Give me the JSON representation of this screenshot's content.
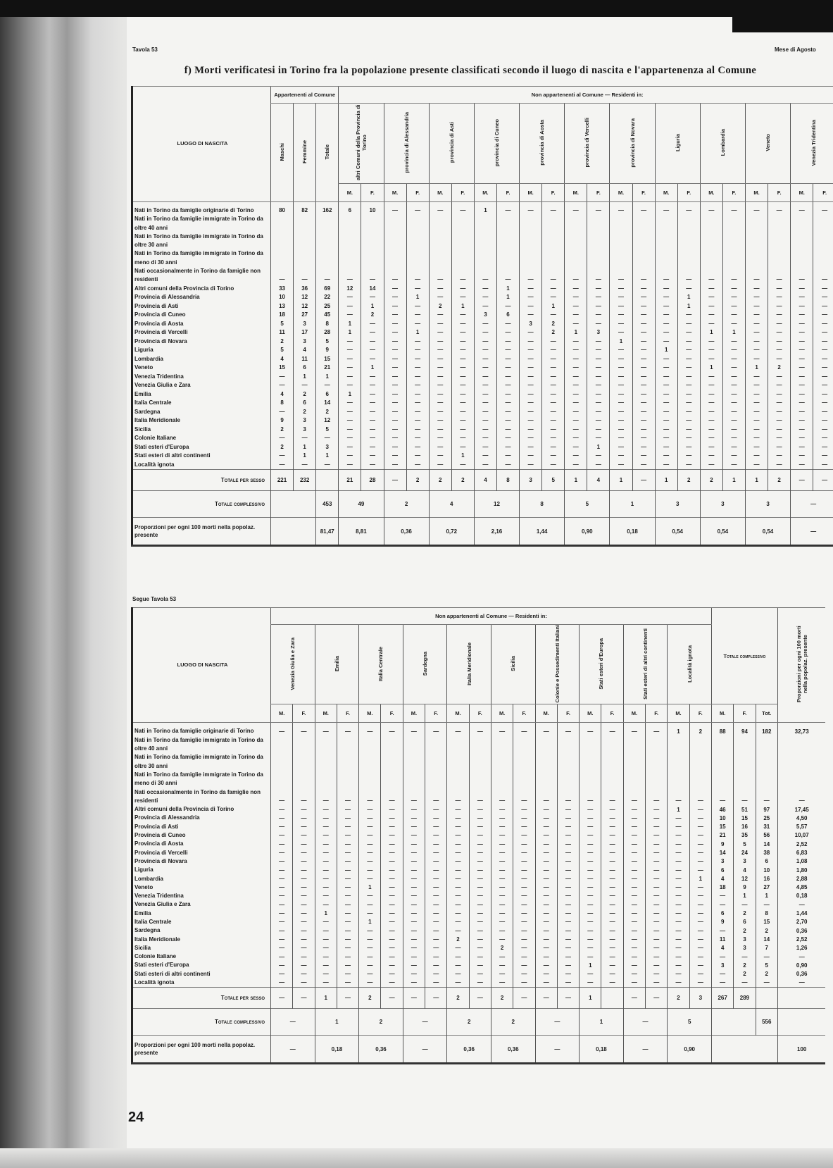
{
  "header": {
    "left": "Tavola 53",
    "right": "Mese di Agosto",
    "title": "f) Morti verificatesi in Torino fra la popolazione presente classificati secondo il luogo di nascita e l'appartenenza al Comune",
    "continued": "Segue Tavola 53",
    "page_number": "24"
  },
  "row_labels": [
    "Nati in Torino da famiglie originarie di Torino",
    [
      "Nati in Torino da famiglie immigrate in Torino da oltre 40 anni",
      "Nati in Torino da famiglie immigrate in Torino da oltre 30 anni",
      "Nati in Torino da famiglie immigrate in Torino da meno di 30 anni",
      "Nati occasionalmente in Torino da famiglie non residenti"
    ],
    "Altri comuni della Provincia di Torino",
    "Provincia di Alessandria",
    "Provincia di Asti",
    "Provincia di Cuneo",
    "Provincia di Aosta",
    "Provincia di Vercelli",
    "Provincia di Novara",
    "Liguria",
    "Lombardia",
    "Veneto",
    "Venezia Tridentina",
    "Venezia Giulia e Zara",
    "Emilia",
    "Italia Centrale",
    "Sardegna",
    "Italia Meridionale",
    "Sicilia",
    "Colonie Italiane",
    "Stati esteri d'Europa",
    "Stati esteri di altri continenti",
    "Località ignota"
  ],
  "labels": {
    "luogo": "LUOGO DI NASCITA",
    "totale_sesso": "Totale per sesso",
    "totale_compl": "Totale complessivo",
    "proporzioni": "Proporzioni per ogni 100 morti nella popolaz. presente",
    "m": "M.",
    "f": "F.",
    "tot": "Tot."
  },
  "table1": {
    "group_app": "Appartenenti al Comune",
    "group_non": "Non appartenenti al Comune — Residenti in:",
    "app_cols": [
      "Maschi",
      "Femmine",
      "Totale"
    ],
    "res_cols": [
      "altri Comuni della Provincia di Torino",
      "provincia di Alessandria",
      "provincia di Asti",
      "provincia di Cuneo",
      "provincia di Aosta",
      "provincia di Vercelli",
      "provincia di Novara",
      "Liguria",
      "Lombardia",
      "Veneto",
      "Venezia Tridentina"
    ],
    "rows": [
      [
        "80",
        "82",
        "162",
        "6",
        "10",
        "—",
        "—",
        "—",
        "—",
        "1",
        "—",
        "—",
        "—",
        "—",
        "—",
        "—",
        "—",
        "—",
        "—",
        "—",
        "—",
        "—",
        "—",
        "—",
        "—"
      ],
      [
        "—",
        "—",
        "—",
        "—",
        "—",
        "—",
        "—",
        "—",
        "—",
        "—",
        "—",
        "—",
        "—",
        "—",
        "—",
        "—",
        "—",
        "—",
        "—",
        "—",
        "—",
        "—",
        "—",
        "—",
        "—"
      ],
      [
        "33",
        "36",
        "69",
        "12",
        "14",
        "—",
        "—",
        "—",
        "—",
        "—",
        "1",
        "—",
        "—",
        "—",
        "—",
        "—",
        "—",
        "—",
        "—",
        "—",
        "—",
        "—",
        "—",
        "—",
        "—"
      ],
      [
        "10",
        "12",
        "22",
        "—",
        "—",
        "—",
        "1",
        "—",
        "—",
        "—",
        "1",
        "—",
        "—",
        "—",
        "—",
        "—",
        "—",
        "—",
        "1",
        "—",
        "—",
        "—",
        "—",
        "—",
        "—"
      ],
      [
        "13",
        "12",
        "25",
        "—",
        "1",
        "—",
        "—",
        "2",
        "1",
        "—",
        "—",
        "—",
        "1",
        "—",
        "—",
        "—",
        "—",
        "—",
        "1",
        "—",
        "—",
        "—",
        "—",
        "—",
        "—"
      ],
      [
        "18",
        "27",
        "45",
        "—",
        "2",
        "—",
        "—",
        "—",
        "—",
        "3",
        "6",
        "—",
        "—",
        "—",
        "—",
        "—",
        "—",
        "—",
        "—",
        "—",
        "—",
        "—",
        "—",
        "—",
        "—"
      ],
      [
        "5",
        "3",
        "8",
        "1",
        "—",
        "—",
        "—",
        "—",
        "—",
        "—",
        "—",
        "3",
        "2",
        "—",
        "—",
        "—",
        "—",
        "—",
        "—",
        "—",
        "—",
        "—",
        "—",
        "—",
        "—"
      ],
      [
        "11",
        "17",
        "28",
        "1",
        "—",
        "—",
        "1",
        "—",
        "—",
        "—",
        "—",
        "—",
        "2",
        "1",
        "3",
        "—",
        "—",
        "—",
        "—",
        "1",
        "1",
        "—",
        "—",
        "—",
        "—"
      ],
      [
        "2",
        "3",
        "5",
        "—",
        "—",
        "—",
        "—",
        "—",
        "—",
        "—",
        "—",
        "—",
        "—",
        "—",
        "—",
        "1",
        "—",
        "—",
        "—",
        "—",
        "—",
        "—",
        "—",
        "—",
        "—"
      ],
      [
        "5",
        "4",
        "9",
        "—",
        "—",
        "—",
        "—",
        "—",
        "—",
        "—",
        "—",
        "—",
        "—",
        "—",
        "—",
        "—",
        "—",
        "1",
        "—",
        "—",
        "—",
        "—",
        "—",
        "—",
        "—"
      ],
      [
        "4",
        "11",
        "15",
        "—",
        "—",
        "—",
        "—",
        "—",
        "—",
        "—",
        "—",
        "—",
        "—",
        "—",
        "—",
        "—",
        "—",
        "—",
        "—",
        "—",
        "—",
        "—",
        "—",
        "—",
        "—"
      ],
      [
        "15",
        "6",
        "21",
        "—",
        "1",
        "—",
        "—",
        "—",
        "—",
        "—",
        "—",
        "—",
        "—",
        "—",
        "—",
        "—",
        "—",
        "—",
        "—",
        "1",
        "—",
        "1",
        "2",
        "—",
        "—"
      ],
      [
        "—",
        "1",
        "1",
        "—",
        "—",
        "—",
        "—",
        "—",
        "—",
        "—",
        "—",
        "—",
        "—",
        "—",
        "—",
        "—",
        "—",
        "—",
        "—",
        "—",
        "—",
        "—",
        "—",
        "—",
        "—"
      ],
      [
        "—",
        "—",
        "—",
        "—",
        "—",
        "—",
        "—",
        "—",
        "—",
        "—",
        "—",
        "—",
        "—",
        "—",
        "—",
        "—",
        "—",
        "—",
        "—",
        "—",
        "—",
        "—",
        "—",
        "—",
        "—"
      ],
      [
        "4",
        "2",
        "6",
        "1",
        "—",
        "—",
        "—",
        "—",
        "—",
        "—",
        "—",
        "—",
        "—",
        "—",
        "—",
        "—",
        "—",
        "—",
        "—",
        "—",
        "—",
        "—",
        "—",
        "—",
        "—"
      ],
      [
        "8",
        "6",
        "14",
        "—",
        "—",
        "—",
        "—",
        "—",
        "—",
        "—",
        "—",
        "—",
        "—",
        "—",
        "—",
        "—",
        "—",
        "—",
        "—",
        "—",
        "—",
        "—",
        "—",
        "—",
        "—"
      ],
      [
        "—",
        "2",
        "2",
        "—",
        "—",
        "—",
        "—",
        "—",
        "—",
        "—",
        "—",
        "—",
        "—",
        "—",
        "—",
        "—",
        "—",
        "—",
        "—",
        "—",
        "—",
        "—",
        "—",
        "—",
        "—"
      ],
      [
        "9",
        "3",
        "12",
        "—",
        "—",
        "—",
        "—",
        "—",
        "—",
        "—",
        "—",
        "—",
        "—",
        "—",
        "—",
        "—",
        "—",
        "—",
        "—",
        "—",
        "—",
        "—",
        "—",
        "—",
        "—"
      ],
      [
        "2",
        "3",
        "5",
        "—",
        "—",
        "—",
        "—",
        "—",
        "—",
        "—",
        "—",
        "—",
        "—",
        "—",
        "—",
        "—",
        "—",
        "—",
        "—",
        "—",
        "—",
        "—",
        "—",
        "—",
        "—"
      ],
      [
        "—",
        "—",
        "—",
        "—",
        "—",
        "—",
        "—",
        "—",
        "—",
        "—",
        "—",
        "—",
        "—",
        "—",
        "—",
        "—",
        "—",
        "—",
        "—",
        "—",
        "—",
        "—",
        "—",
        "—",
        "—"
      ],
      [
        "2",
        "1",
        "3",
        "—",
        "—",
        "—",
        "—",
        "—",
        "—",
        "—",
        "—",
        "—",
        "—",
        "—",
        "1",
        "—",
        "—",
        "—",
        "—",
        "—",
        "—",
        "—",
        "—",
        "—",
        "—"
      ],
      [
        "—",
        "1",
        "1",
        "—",
        "—",
        "—",
        "—",
        "—",
        "1",
        "—",
        "—",
        "—",
        "—",
        "—",
        "—",
        "—",
        "—",
        "—",
        "—",
        "—",
        "—",
        "—",
        "—",
        "—",
        "—"
      ],
      [
        "—",
        "—",
        "—",
        "—",
        "—",
        "—",
        "—",
        "—",
        "—",
        "—",
        "—",
        "—",
        "—",
        "—",
        "—",
        "—",
        "—",
        "—",
        "—",
        "—",
        "—",
        "—",
        "—",
        "—",
        "—"
      ]
    ],
    "totale_sesso": [
      "221",
      "232",
      "",
      "21",
      "28",
      "—",
      "2",
      "2",
      "2",
      "4",
      "8",
      "3",
      "5",
      "1",
      "4",
      "1",
      "—",
      "1",
      "2",
      "2",
      "1",
      "1",
      "2",
      "—",
      "—"
    ],
    "totale_compl": {
      "totale": "453",
      "groups": [
        "49",
        "2",
        "4",
        "12",
        "8",
        "5",
        "1",
        "3",
        "3",
        "3",
        "—"
      ]
    },
    "proporzioni": {
      "totale": "81,47",
      "groups": [
        "8,81",
        "0,36",
        "0,72",
        "2,16",
        "1,44",
        "0,90",
        "0,18",
        "0,54",
        "0,54",
        "0,54",
        "—"
      ]
    }
  },
  "table2": {
    "group_non": "Non appartenenti al Comune — Residenti in:",
    "res_cols": [
      "Venezia Giulia e Zara",
      "Emilia",
      "Italia Centrale",
      "Sardegna",
      "Italia Meridionale",
      "Sicilia",
      "Colonie e Possedimenti Italiani",
      "Stati esteri d'Europa",
      "Stati esteri di altri continenti",
      "Località ignota"
    ],
    "totale_head": "Totale complessivo",
    "prop_head": "Proporzioni per ogni 100 morti nella popolaz. presente",
    "rows": [
      [
        "—",
        "—",
        "—",
        "—",
        "—",
        "—",
        "—",
        "—",
        "—",
        "—",
        "—",
        "—",
        "—",
        "—",
        "—",
        "—",
        "—",
        "—",
        "1",
        "2",
        "88",
        "94",
        "182",
        "32,73"
      ],
      [
        "—",
        "—",
        "—",
        "—",
        "—",
        "—",
        "—",
        "—",
        "—",
        "—",
        "—",
        "—",
        "—",
        "—",
        "—",
        "—",
        "—",
        "—",
        "—",
        "—",
        "—",
        "—",
        "—",
        "—"
      ],
      [
        "—",
        "—",
        "—",
        "—",
        "—",
        "—",
        "—",
        "—",
        "—",
        "—",
        "—",
        "—",
        "—",
        "—",
        "—",
        "—",
        "—",
        "—",
        "1",
        "—",
        "46",
        "51",
        "97",
        "17,45"
      ],
      [
        "—",
        "—",
        "—",
        "—",
        "—",
        "—",
        "—",
        "—",
        "—",
        "—",
        "—",
        "—",
        "—",
        "—",
        "—",
        "—",
        "—",
        "—",
        "—",
        "—",
        "10",
        "15",
        "25",
        "4,50"
      ],
      [
        "—",
        "—",
        "—",
        "—",
        "—",
        "—",
        "—",
        "—",
        "—",
        "—",
        "—",
        "—",
        "—",
        "—",
        "—",
        "—",
        "—",
        "—",
        "—",
        "—",
        "15",
        "16",
        "31",
        "5,57"
      ],
      [
        "—",
        "—",
        "—",
        "—",
        "—",
        "—",
        "—",
        "—",
        "—",
        "—",
        "—",
        "—",
        "—",
        "—",
        "—",
        "—",
        "—",
        "—",
        "—",
        "—",
        "21",
        "35",
        "56",
        "10,07"
      ],
      [
        "—",
        "—",
        "—",
        "—",
        "—",
        "—",
        "—",
        "—",
        "—",
        "—",
        "—",
        "—",
        "—",
        "—",
        "—",
        "—",
        "—",
        "—",
        "—",
        "—",
        "9",
        "5",
        "14",
        "2,52"
      ],
      [
        "—",
        "—",
        "—",
        "—",
        "—",
        "—",
        "—",
        "—",
        "—",
        "—",
        "—",
        "—",
        "—",
        "—",
        "—",
        "—",
        "—",
        "—",
        "—",
        "—",
        "14",
        "24",
        "38",
        "6,83"
      ],
      [
        "—",
        "—",
        "—",
        "—",
        "—",
        "—",
        "—",
        "—",
        "—",
        "—",
        "—",
        "—",
        "—",
        "—",
        "—",
        "—",
        "—",
        "—",
        "—",
        "—",
        "3",
        "3",
        "6",
        "1,08"
      ],
      [
        "—",
        "—",
        "—",
        "—",
        "—",
        "—",
        "—",
        "—",
        "—",
        "—",
        "—",
        "—",
        "—",
        "—",
        "—",
        "—",
        "—",
        "—",
        "—",
        "—",
        "6",
        "4",
        "10",
        "1,80"
      ],
      [
        "—",
        "—",
        "—",
        "—",
        "—",
        "—",
        "—",
        "—",
        "—",
        "—",
        "—",
        "—",
        "—",
        "—",
        "—",
        "—",
        "—",
        "—",
        "—",
        "1",
        "4",
        "12",
        "16",
        "2,88"
      ],
      [
        "—",
        "—",
        "—",
        "—",
        "1",
        "—",
        "—",
        "—",
        "—",
        "—",
        "—",
        "—",
        "—",
        "—",
        "—",
        "—",
        "—",
        "—",
        "—",
        "—",
        "18",
        "9",
        "27",
        "4,85"
      ],
      [
        "—",
        "—",
        "—",
        "—",
        "—",
        "—",
        "—",
        "—",
        "—",
        "—",
        "—",
        "—",
        "—",
        "—",
        "—",
        "—",
        "—",
        "—",
        "—",
        "—",
        "—",
        "1",
        "1",
        "0,18"
      ],
      [
        "—",
        "—",
        "—",
        "—",
        "—",
        "—",
        "—",
        "—",
        "—",
        "—",
        "—",
        "—",
        "—",
        "—",
        "—",
        "—",
        "—",
        "—",
        "—",
        "—",
        "—",
        "—",
        "—",
        "—"
      ],
      [
        "—",
        "—",
        "1",
        "—",
        "—",
        "—",
        "—",
        "—",
        "—",
        "—",
        "—",
        "—",
        "—",
        "—",
        "—",
        "—",
        "—",
        "—",
        "—",
        "—",
        "6",
        "2",
        "8",
        "1,44"
      ],
      [
        "—",
        "—",
        "—",
        "—",
        "1",
        "—",
        "—",
        "—",
        "—",
        "—",
        "—",
        "—",
        "—",
        "—",
        "—",
        "—",
        "—",
        "—",
        "—",
        "—",
        "9",
        "6",
        "15",
        "2,70"
      ],
      [
        "—",
        "—",
        "—",
        "—",
        "—",
        "—",
        "—",
        "—",
        "—",
        "—",
        "—",
        "—",
        "—",
        "—",
        "—",
        "—",
        "—",
        "—",
        "—",
        "—",
        "—",
        "2",
        "2",
        "0,36"
      ],
      [
        "—",
        "—",
        "—",
        "—",
        "—",
        "—",
        "—",
        "—",
        "2",
        "—",
        "—",
        "—",
        "—",
        "—",
        "—",
        "—",
        "—",
        "—",
        "—",
        "—",
        "11",
        "3",
        "14",
        "2,52"
      ],
      [
        "—",
        "—",
        "—",
        "—",
        "—",
        "—",
        "—",
        "—",
        "—",
        "—",
        "2",
        "—",
        "—",
        "—",
        "—",
        "—",
        "—",
        "—",
        "—",
        "—",
        "4",
        "3",
        "7",
        "1,26"
      ],
      [
        "—",
        "—",
        "—",
        "—",
        "—",
        "—",
        "—",
        "—",
        "—",
        "—",
        "—",
        "—",
        "—",
        "—",
        "—",
        "—",
        "—",
        "—",
        "—",
        "—",
        "—",
        "—",
        "—",
        "—"
      ],
      [
        "—",
        "—",
        "—",
        "—",
        "—",
        "—",
        "—",
        "—",
        "—",
        "—",
        "—",
        "—",
        "—",
        "—",
        "1",
        "—",
        "—",
        "—",
        "—",
        "—",
        "3",
        "2",
        "5",
        "0,90"
      ],
      [
        "—",
        "—",
        "—",
        "—",
        "—",
        "—",
        "—",
        "—",
        "—",
        "—",
        "—",
        "—",
        "—",
        "—",
        "—",
        "—",
        "—",
        "—",
        "—",
        "—",
        "—",
        "2",
        "2",
        "0,36"
      ],
      [
        "—",
        "—",
        "—",
        "—",
        "—",
        "—",
        "—",
        "—",
        "—",
        "—",
        "—",
        "—",
        "—",
        "—",
        "—",
        "—",
        "—",
        "—",
        "—",
        "—",
        "—",
        "—",
        "—",
        "—"
      ]
    ],
    "totale_sesso": [
      "—",
      "—",
      "1",
      "—",
      "2",
      "—",
      "—",
      "—",
      "2",
      "—",
      "2",
      "—",
      "—",
      "—",
      "1",
      "",
      "—",
      "—",
      "2",
      "3",
      "267",
      "289",
      "",
      ""
    ],
    "totale_compl": {
      "groups": [
        "—",
        "1",
        "2",
        "—",
        "2",
        "2",
        "—",
        "1",
        "—",
        "5"
      ],
      "totale": "556"
    },
    "proporzioni": {
      "groups": [
        "—",
        "0,18",
        "0,36",
        "—",
        "0,36",
        "0,36",
        "—",
        "0,18",
        "—",
        "0,90"
      ],
      "totale": "100"
    }
  }
}
